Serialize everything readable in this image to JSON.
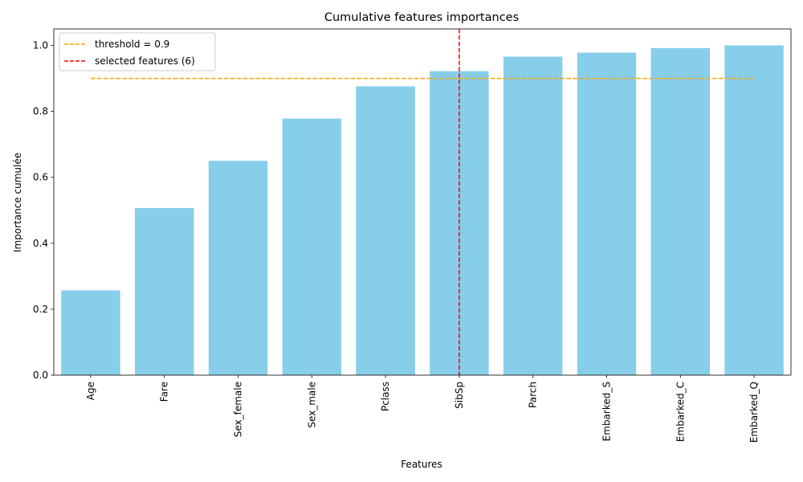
{
  "chart_data": {
    "type": "bar",
    "title": "Cumulative features importances",
    "xlabel": "Features",
    "ylabel": "Importance cumulée",
    "categories": [
      "Age",
      "Fare",
      "Sex_female",
      "Sex_male",
      "Pclass",
      "SibSp",
      "Parch",
      "Embarked_S",
      "Embarked_C",
      "Embarked_Q"
    ],
    "values": [
      0.257,
      0.507,
      0.65,
      0.778,
      0.876,
      0.922,
      0.966,
      0.978,
      0.992,
      1.0
    ],
    "ylim": [
      0,
      1.05
    ],
    "yticks": [
      "0.0",
      "0.2",
      "0.4",
      "0.6",
      "0.8",
      "1.0"
    ],
    "ytick_values": [
      0,
      0.2,
      0.4,
      0.6,
      0.8,
      1.0
    ],
    "bar_color": "#87ceeb",
    "threshold": {
      "value": 0.9,
      "label": "threshold = 0.9",
      "color": "#ffa500",
      "from_category": "Age",
      "to_category": "Embarked_Q"
    },
    "selected": {
      "category": "SibSp",
      "label": "selected features (6)",
      "color": "#ff0000"
    },
    "legend_position": "top-left",
    "grid": false
  }
}
